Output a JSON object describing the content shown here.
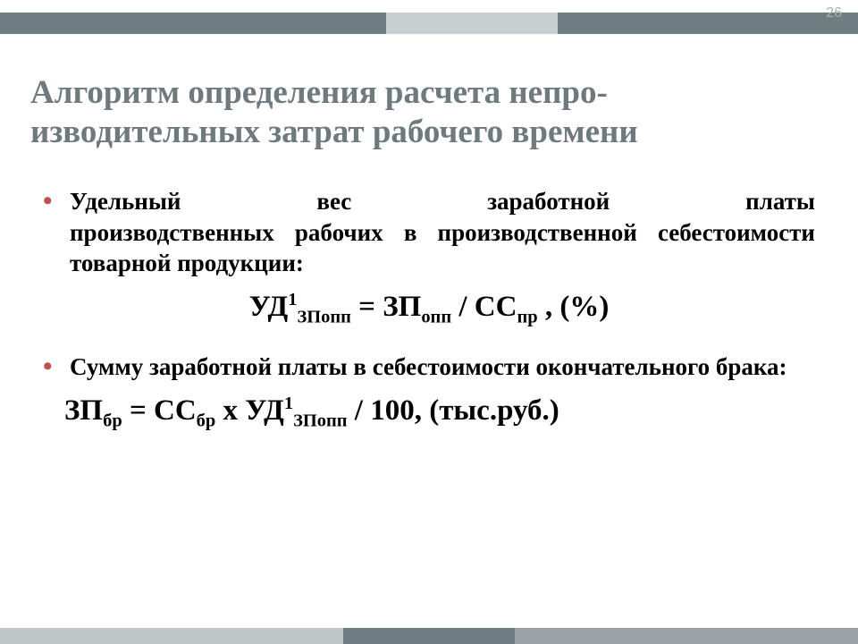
{
  "page_number": "26",
  "title": "Алгоритм определения расчета непро-изводительных затрат рабочего времени",
  "colors": {
    "background": "#ffffff",
    "title_text": "#6e7a7d",
    "body_text": "#000000",
    "bullet": "#c0504d",
    "pagenum": "#a7b0b3",
    "stripe_dark": "#6f7d80",
    "stripe_light": "#c8cfd1",
    "bottom_a": "#bfc6c8",
    "bottom_b": "#6f7d80",
    "bottom_c": "#9aa3a6"
  },
  "typography": {
    "title_fontsize_pt": 28,
    "body_fontsize_pt": 20,
    "formula_fontsize_pt": 25,
    "pagenum_fontsize_pt": 12,
    "font_family": "Georgia / Times New Roman (serif)"
  },
  "items": [
    {
      "text_line1": "Удельный вес заработной платы",
      "text_rest": "производственных рабочих в производственной себестоимости товарной продукции:",
      "formula": {
        "lhs_base": "УД",
        "lhs_sup": "1",
        "lhs_sub": "ЗПопп",
        "eq": " = ",
        "t1_base": "ЗП",
        "t1_sub": "опп",
        "div": " / ",
        "t2_base": "СС",
        "t2_sub": "пр",
        "tail": " , (%)"
      }
    },
    {
      "text": "Сумму заработной платы в себестоимости окончательного брака:",
      "formula": {
        "lhs_base": "ЗП",
        "lhs_sub": "бр",
        "eq": " = ",
        "t1_base": "СС",
        "t1_sub": "бр",
        "mul": " х ",
        "t2_base": "УД",
        "t2_sup": "1",
        "t2_sub": "ЗПопп",
        "tail": "  / 100, (тыс.руб.)"
      }
    }
  ]
}
